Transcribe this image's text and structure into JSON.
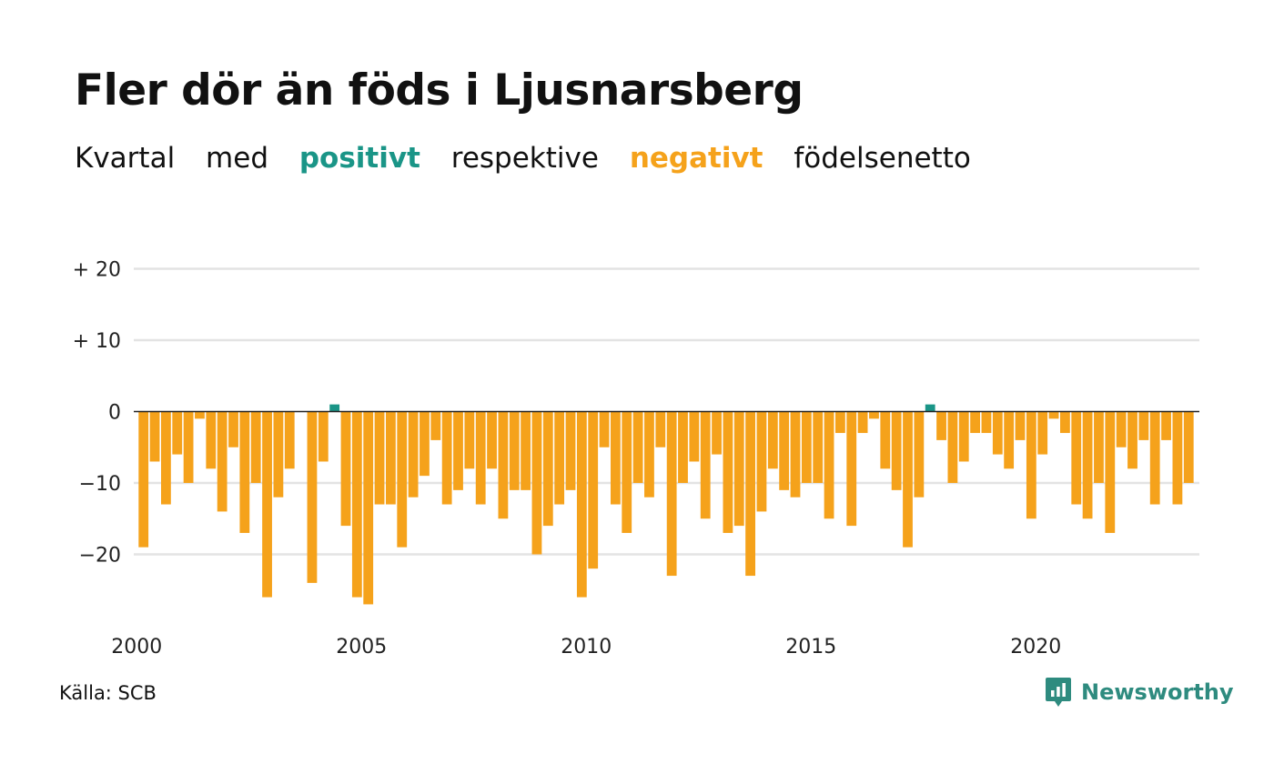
{
  "colors": {
    "positive": "#1a9587",
    "negative": "#f5a21b",
    "grid": "#e3e3e3",
    "zero_line": "#222222",
    "brand": "#2e8b7f"
  },
  "subtitle": {
    "w1": "Kvartal",
    "w2": "med",
    "positive_word": "positivt",
    "w3": "respektive",
    "negative_word": "negativt",
    "w4": "födelsenetto"
  },
  "source": "Källa: SCB",
  "brand": {
    "name": "Newsworthy",
    "icon": "newsworthy-chart-bubble-icon"
  },
  "chart_data": {
    "type": "bar",
    "title": "Fler dör än föds i Ljusnarsberg",
    "xlabel": "",
    "ylabel": "",
    "start_year": 2000,
    "quarters_per_year": 4,
    "x_ticks": [
      2000,
      2005,
      2010,
      2015,
      2020
    ],
    "y_ticks": [
      -20,
      -10,
      0,
      10,
      20
    ],
    "y_tick_labels": [
      "−20",
      "−10",
      "0",
      "+ 10",
      "+ 20"
    ],
    "ylim": [
      -30,
      20
    ],
    "grid": true,
    "legend": "none",
    "values": [
      -19,
      -7,
      -13,
      -6,
      -10,
      -1,
      -8,
      -14,
      -5,
      -17,
      -10,
      -26,
      -12,
      -8,
      0,
      -24,
      -7,
      1,
      -16,
      -26,
      -27,
      -13,
      -13,
      -19,
      -12,
      -9,
      -4,
      -13,
      -11,
      -8,
      -13,
      -8,
      -15,
      -11,
      -11,
      -20,
      -16,
      -13,
      -11,
      -26,
      -22,
      -5,
      -13,
      -17,
      -10,
      -12,
      -5,
      -23,
      -10,
      -7,
      -15,
      -6,
      -17,
      -16,
      -23,
      -14,
      -8,
      -11,
      -12,
      -10,
      -10,
      -15,
      -3,
      -16,
      -3,
      -1,
      -8,
      -11,
      -19,
      -12,
      1,
      -4,
      -10,
      -7,
      -3,
      -3,
      -6,
      -8,
      -4,
      -15,
      -6,
      -1,
      -3,
      -13,
      -15,
      -10,
      -17,
      -5,
      -8,
      -4,
      -13,
      -4,
      -13,
      -10
    ]
  }
}
